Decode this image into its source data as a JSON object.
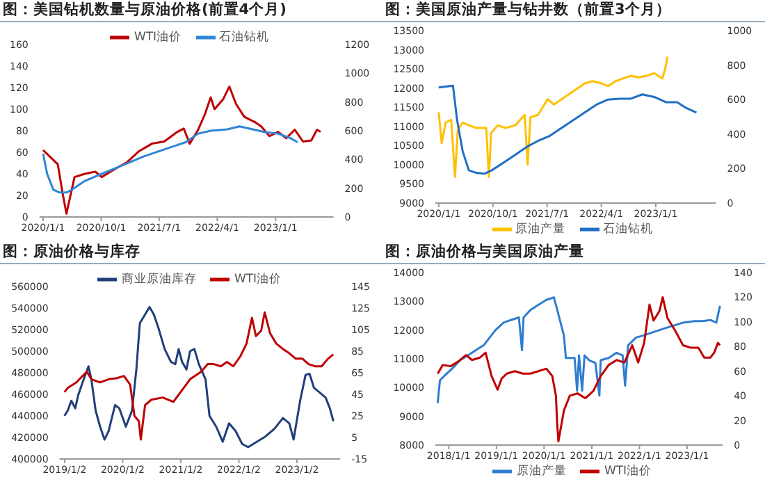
{
  "chart_data": [
    {
      "type": "line",
      "title": "图：美国钻机数量与原油价格(前置4个月)",
      "legend": "top",
      "xlim": [
        "2019-12-15",
        "2023-10-01"
      ],
      "xticks": [
        {
          "value": "2020-01-01",
          "label": "2020/1/1"
        },
        {
          "value": "2020-10-01",
          "label": "2020/10/1"
        },
        {
          "value": "2021-07-01",
          "label": "2021/7/1"
        },
        {
          "value": "2022-04-01",
          "label": "2022/4/1"
        },
        {
          "value": "2023-01-01",
          "label": "2023/1/1"
        }
      ],
      "ylim": [
        0,
        160
      ],
      "yticks": [
        0,
        20,
        40,
        60,
        80,
        100,
        120,
        140,
        160
      ],
      "y2lim": [
        0,
        1200
      ],
      "y2ticks": [
        0,
        200,
        400,
        600,
        800,
        1000,
        1200
      ],
      "series": [
        {
          "name": "WTI油价",
          "color": "#c00000",
          "x": [
            "2020-01-01",
            "2020-03-10",
            "2020-04-03",
            "2020-04-20",
            "2020-05-28",
            "2020-07-15",
            "2020-09-03",
            "2020-10-03",
            "2020-12-01",
            "2021-02-01",
            "2021-03-28",
            "2021-05-28",
            "2021-07-25",
            "2021-09-25",
            "2021-10-25",
            "2021-11-22",
            "2022-01-01",
            "2022-02-01",
            "2022-03-01",
            "2022-03-19",
            "2022-04-28",
            "2022-05-28",
            "2022-06-28",
            "2022-08-06",
            "2022-09-25",
            "2022-10-25",
            "2022-12-03",
            "2023-01-12",
            "2023-02-20",
            "2023-04-01",
            "2023-05-10",
            "2023-06-18",
            "2023-07-15",
            "2023-08-01"
          ],
          "values": [
            62,
            49,
            21,
            3,
            37,
            40,
            42,
            37,
            44,
            51,
            61,
            68,
            70,
            79,
            82,
            68,
            81,
            95,
            111,
            100,
            109,
            121,
            105,
            93,
            88,
            84,
            75,
            79,
            73,
            81,
            70,
            71,
            81,
            79
          ]
        },
        {
          "name": "石油钻机",
          "color": "#2e86d6",
          "axis": "y2",
          "x": [
            "2020-01-01",
            "2020-01-20",
            "2020-02-18",
            "2020-03-18",
            "2020-04-20",
            "2020-05-16",
            "2020-07-15",
            "2020-10-03",
            "2021-01-10",
            "2021-04-18",
            "2021-07-25",
            "2021-11-03",
            "2022-01-01",
            "2022-03-01",
            "2022-05-18",
            "2022-07-15",
            "2022-09-15",
            "2022-11-12",
            "2023-01-12",
            "2023-03-10",
            "2023-04-15"
          ],
          "values": [
            440,
            300,
            190,
            170,
            170,
            190,
            250,
            300,
            360,
            420,
            470,
            520,
            580,
            600,
            610,
            630,
            610,
            590,
            580,
            550,
            520
          ]
        }
      ]
    },
    {
      "type": "line",
      "title": "图：美国原油产量与钻井数（前置3个月）",
      "legend": "bottom",
      "xlim": [
        "2019-12-15",
        "2023-11-01"
      ],
      "xticks": [
        {
          "value": "2020-01-01",
          "label": "2020/1/1"
        },
        {
          "value": "2020-10-01",
          "label": "2020/10/1"
        },
        {
          "value": "2021-07-01",
          "label": "2021/7/1"
        },
        {
          "value": "2022-04-01",
          "label": "2022/4/1"
        },
        {
          "value": "2023-01-01",
          "label": "2023/1/1"
        }
      ],
      "ylim": [
        9000,
        13500
      ],
      "yticks": [
        9000,
        9500,
        10000,
        10500,
        11000,
        11500,
        12000,
        12500,
        13000,
        13500
      ],
      "y2lim": [
        0,
        1000
      ],
      "y2ticks": [
        0,
        200,
        400,
        600,
        800,
        1000
      ],
      "series": [
        {
          "name": "原油产量",
          "color": "#ffc000",
          "x": [
            "2020-01-01",
            "2020-01-16",
            "2020-02-05",
            "2020-03-04",
            "2020-03-23",
            "2020-04-06",
            "2020-05-01",
            "2020-06-01",
            "2020-07-09",
            "2020-08-28",
            "2020-09-10",
            "2020-09-22",
            "2020-10-25",
            "2020-12-04",
            "2021-01-22",
            "2021-03-10",
            "2021-03-25",
            "2021-04-08",
            "2021-05-16",
            "2021-07-04",
            "2021-08-04",
            "2021-09-12",
            "2021-10-22",
            "2021-11-28",
            "2022-01-07",
            "2022-02-15",
            "2022-03-25",
            "2022-05-04",
            "2022-06-12",
            "2022-07-19",
            "2022-08-28",
            "2022-10-06",
            "2022-11-15",
            "2022-12-24",
            "2023-02-03",
            "2023-02-18",
            "2023-03-01"
          ],
          "values": [
            11370,
            10560,
            11100,
            11170,
            9680,
            10900,
            11100,
            11030,
            10960,
            10960,
            9680,
            10830,
            11030,
            10960,
            11030,
            11300,
            10000,
            11240,
            11300,
            11710,
            11570,
            11710,
            11850,
            11980,
            12120,
            12180,
            12140,
            12050,
            12180,
            12250,
            12320,
            12280,
            12320,
            12390,
            12250,
            12520,
            12820
          ]
        },
        {
          "name": "石油钻机",
          "color": "#1f6fc5",
          "axis": "y2",
          "x": [
            "2020-01-01",
            "2020-02-05",
            "2020-03-13",
            "2020-04-03",
            "2020-05-01",
            "2020-06-01",
            "2020-07-09",
            "2020-08-18",
            "2020-09-25",
            "2020-11-24",
            "2021-01-22",
            "2021-03-19",
            "2021-05-16",
            "2021-07-15",
            "2021-09-12",
            "2021-11-09",
            "2022-01-07",
            "2022-03-06",
            "2022-05-04",
            "2022-07-01",
            "2022-08-28",
            "2022-10-25",
            "2022-12-24",
            "2023-02-21",
            "2023-04-19",
            "2023-05-28",
            "2023-07-25"
          ],
          "values": [
            670,
            675,
            680,
            480,
            300,
            190,
            175,
            170,
            190,
            235,
            280,
            325,
            360,
            390,
            435,
            480,
            525,
            570,
            600,
            605,
            605,
            630,
            615,
            585,
            585,
            555,
            525
          ]
        }
      ]
    },
    {
      "type": "line",
      "title": "图：原油价格与库存",
      "legend": "top",
      "xlim": [
        "2018-12-01",
        "2023-10-01"
      ],
      "xticks": [
        {
          "value": "2019-01-02",
          "label": "2019/1/2"
        },
        {
          "value": "2020-01-02",
          "label": "2020/1/2"
        },
        {
          "value": "2021-01-02",
          "label": "2021/1/2"
        },
        {
          "value": "2022-01-02",
          "label": "2022/1/2"
        },
        {
          "value": "2023-01-02",
          "label": "2023/1/2"
        }
      ],
      "ylim": [
        400000,
        560000
      ],
      "yticks": [
        400000,
        420000,
        440000,
        460000,
        480000,
        500000,
        520000,
        540000,
        560000
      ],
      "y2lim": [
        -15,
        145
      ],
      "y2ticks": [
        -15,
        5,
        25,
        45,
        65,
        85,
        105,
        125,
        145
      ],
      "series": [
        {
          "name": "商业原油库存",
          "color": "#203f7a",
          "x": [
            "2019-01-01",
            "2019-01-22",
            "2019-02-13",
            "2019-03-10",
            "2019-03-28",
            "2019-04-25",
            "2019-06-01",
            "2019-06-19",
            "2019-07-16",
            "2019-08-13",
            "2019-09-10",
            "2019-10-06",
            "2019-11-15",
            "2019-12-12",
            "2020-01-22",
            "2020-03-01",
            "2020-03-28",
            "2020-04-19",
            "2020-05-22",
            "2020-06-19",
            "2020-07-16",
            "2020-08-13",
            "2020-09-22",
            "2020-11-01",
            "2020-11-28",
            "2020-12-19",
            "2021-01-10",
            "2021-02-06",
            "2021-03-01",
            "2021-03-28",
            "2021-04-25",
            "2021-06-06",
            "2021-07-01",
            "2021-08-12",
            "2021-09-22",
            "2021-11-01",
            "2021-12-12",
            "2022-01-22",
            "2022-03-01",
            "2022-04-25",
            "2022-06-19",
            "2022-08-13",
            "2022-10-06",
            "2022-11-15",
            "2022-12-12",
            "2023-01-22",
            "2023-02-25",
            "2023-03-22",
            "2023-04-19",
            "2023-05-22",
            "2023-07-01",
            "2023-07-28",
            "2023-08-19"
          ],
          "values": [
            440000,
            445000,
            454000,
            447000,
            459000,
            471000,
            486000,
            474000,
            445000,
            430000,
            418000,
            426000,
            450000,
            447000,
            430000,
            445000,
            483000,
            526000,
            534000,
            541000,
            534000,
            522000,
            502000,
            490000,
            488000,
            502000,
            490000,
            483000,
            500000,
            502000,
            488000,
            474000,
            440000,
            430000,
            416000,
            433000,
            426000,
            414000,
            411000,
            416000,
            421000,
            428000,
            438000,
            433000,
            418000,
            454000,
            478000,
            479000,
            466000,
            462000,
            457000,
            447000,
            435000
          ]
        },
        {
          "name": "WTI油价",
          "color": "#c00000",
          "axis": "y2",
          "x": [
            "2019-01-01",
            "2019-01-22",
            "2019-03-16",
            "2019-04-25",
            "2019-05-22",
            "2019-06-19",
            "2019-08-13",
            "2019-10-06",
            "2019-11-28",
            "2020-01-10",
            "2020-02-18",
            "2020-03-16",
            "2020-04-13",
            "2020-04-25",
            "2020-05-22",
            "2020-07-01",
            "2020-09-10",
            "2020-11-16",
            "2021-01-10",
            "2021-03-01",
            "2021-05-10",
            "2021-06-19",
            "2021-07-28",
            "2021-09-10",
            "2021-10-19",
            "2021-11-28",
            "2022-01-10",
            "2022-02-19",
            "2022-03-25",
            "2022-04-19",
            "2022-05-22",
            "2022-06-13",
            "2022-07-16",
            "2022-08-25",
            "2022-10-06",
            "2022-11-15",
            "2022-12-25",
            "2023-02-06",
            "2023-03-16",
            "2023-04-25",
            "2023-06-06",
            "2023-07-16",
            "2023-08-19"
          ],
          "values": [
            47,
            51,
            56,
            62,
            66,
            59,
            56,
            59,
            60,
            62,
            54,
            25,
            20,
            3,
            35,
            40,
            42,
            38,
            49,
            59,
            66,
            73,
            73,
            71,
            75,
            71,
            80,
            92,
            116,
            99,
            104,
            121,
            102,
            92,
            87,
            83,
            78,
            78,
            73,
            71,
            71,
            78,
            82
          ]
        }
      ]
    },
    {
      "type": "line",
      "title": "图：原油价格与美国原油产量",
      "legend": "bottom",
      "xlim": [
        "2017-09-20",
        "2023-10-01"
      ],
      "xticks": [
        {
          "value": "2018-01-01",
          "label": "2018/1/1"
        },
        {
          "value": "2019-01-01",
          "label": "2019/1/1"
        },
        {
          "value": "2020-01-01",
          "label": "2020/1/1"
        },
        {
          "value": "2021-01-01",
          "label": "2021/1/1"
        },
        {
          "value": "2022-01-01",
          "label": "2022/1/1"
        },
        {
          "value": "2023-01-01",
          "label": "2023/1/1"
        }
      ],
      "ylim": [
        8000,
        14000
      ],
      "yticks": [
        8000,
        9000,
        10000,
        11000,
        12000,
        13000,
        14000
      ],
      "y2lim": [
        0,
        140
      ],
      "y2ticks": [
        0,
        20,
        40,
        60,
        80,
        100,
        120,
        140
      ],
      "series": [
        {
          "name": "原油产量",
          "color": "#2e7dd1",
          "x": [
            "2017-10-08",
            "2017-10-25",
            "2017-12-01",
            "2018-02-01",
            "2018-03-28",
            "2018-05-28",
            "2018-07-28",
            "2018-09-25",
            "2018-11-10",
            "2018-12-25",
            "2019-02-25",
            "2019-04-22",
            "2019-06-22",
            "2019-07-16",
            "2019-07-28",
            "2019-09-19",
            "2019-11-19",
            "2020-01-19",
            "2020-03-16",
            "2020-04-01",
            "2020-05-01",
            "2020-06-01",
            "2020-06-16",
            "2020-07-16",
            "2020-08-22",
            "2020-09-10",
            "2020-09-25",
            "2020-10-19",
            "2020-11-06",
            "2020-12-12",
            "2021-01-28",
            "2021-02-28",
            "2021-03-10",
            "2021-05-10",
            "2021-07-10",
            "2021-08-25",
            "2021-09-13",
            "2021-10-06",
            "2021-12-06",
            "2022-02-06",
            "2022-04-04",
            "2022-06-04",
            "2022-08-04",
            "2022-10-01",
            "2022-12-01",
            "2023-02-28",
            "2023-04-28",
            "2023-06-28",
            "2023-08-13",
            "2023-09-10"
          ],
          "values": [
            9460,
            10250,
            10420,
            10680,
            10950,
            11120,
            11300,
            11470,
            11740,
            12000,
            12260,
            12350,
            12440,
            11300,
            12440,
            12700,
            12880,
            13050,
            13140,
            12880,
            12350,
            11820,
            11030,
            11030,
            11030,
            9890,
            11120,
            9890,
            11120,
            10950,
            10860,
            9720,
            10950,
            11030,
            11210,
            11120,
            10070,
            11470,
            11740,
            11820,
            11910,
            12000,
            12090,
            12170,
            12260,
            12310,
            12310,
            12350,
            12260,
            12840
          ]
        },
        {
          "name": "WTI油价",
          "color": "#c00000",
          "axis": "y2",
          "x": [
            "2017-10-08",
            "2017-11-16",
            "2018-01-16",
            "2018-03-16",
            "2018-05-13",
            "2018-06-28",
            "2018-08-28",
            "2018-10-10",
            "2018-11-25",
            "2019-01-10",
            "2019-02-10",
            "2019-03-22",
            "2019-05-22",
            "2019-07-22",
            "2019-09-19",
            "2019-11-19",
            "2020-01-19",
            "2020-03-04",
            "2020-04-01",
            "2020-04-10",
            "2020-04-20",
            "2020-06-01",
            "2020-07-16",
            "2020-09-13",
            "2020-11-13",
            "2021-01-13",
            "2021-03-10",
            "2021-05-10",
            "2021-07-10",
            "2021-09-07",
            "2021-11-07",
            "2021-12-22",
            "2022-02-06",
            "2022-03-19",
            "2022-04-19",
            "2022-06-04",
            "2022-06-28",
            "2022-08-04",
            "2022-10-01",
            "2022-12-01",
            "2023-01-31",
            "2023-03-28",
            "2023-05-13",
            "2023-06-28",
            "2023-07-28",
            "2023-08-25",
            "2023-09-10"
          ],
          "values": [
            58,
            65,
            64,
            68,
            73,
            69,
            71,
            75,
            56,
            45,
            54,
            58,
            60,
            58,
            58,
            60,
            62,
            56,
            40,
            18,
            3,
            28,
            40,
            42,
            38,
            44,
            56,
            65,
            69,
            67,
            81,
            67,
            83,
            114,
            101,
            109,
            120,
            103,
            93,
            81,
            79,
            79,
            71,
            71,
            75,
            83,
            81
          ]
        }
      ]
    }
  ]
}
